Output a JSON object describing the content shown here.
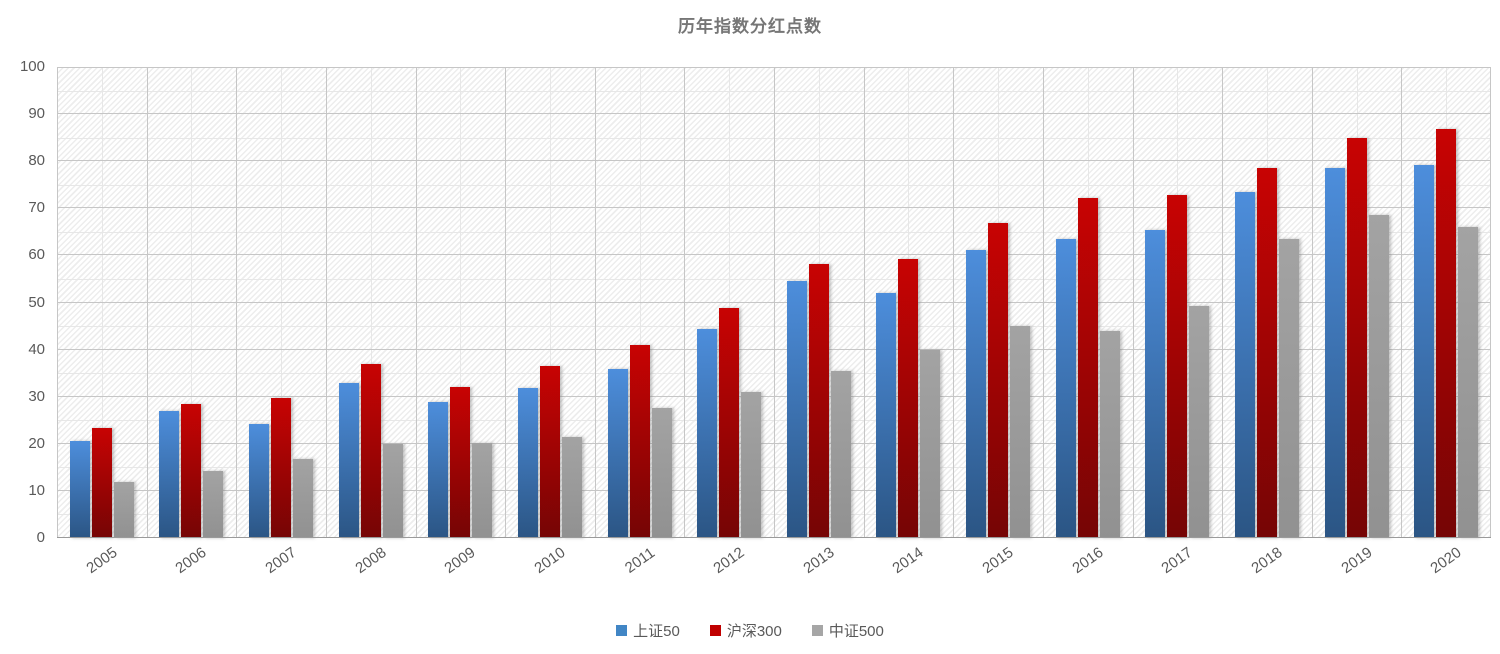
{
  "chart_data": {
    "type": "bar",
    "title": "历年指数分红点数",
    "categories": [
      "2005",
      "2006",
      "2007",
      "2008",
      "2009",
      "2010",
      "2011",
      "2012",
      "2013",
      "2014",
      "2015",
      "2016",
      "2017",
      "2018",
      "2019",
      "2020"
    ],
    "series": [
      {
        "name": "上证50",
        "color_top": "#4d8edc",
        "color_bottom": "#2b5584",
        "legend_color": "#4186c5",
        "values": [
          20.6,
          26.9,
          24.3,
          33.0,
          28.8,
          31.8,
          35.8,
          44.4,
          54.5,
          52.0,
          61.1,
          63.4,
          65.4,
          73.5,
          78.6,
          79.2
        ]
      },
      {
        "name": "沪深300",
        "color_top": "#c80303",
        "color_bottom": "#750505",
        "legend_color": "#c00000",
        "values": [
          23.4,
          28.4,
          29.8,
          37.0,
          32.0,
          36.6,
          40.9,
          48.8,
          58.1,
          59.3,
          66.9,
          72.1,
          72.9,
          78.5,
          85.0,
          86.8
        ]
      },
      {
        "name": "中证500",
        "color_top": "#a3a3a3",
        "color_bottom": "#919191",
        "legend_color": "#a6a6a6",
        "values": [
          11.9,
          14.2,
          16.7,
          20.0,
          20.2,
          21.5,
          27.7,
          31.0,
          35.4,
          40.0,
          45.0,
          44.0,
          49.3,
          63.4,
          68.5,
          66.0
        ]
      }
    ],
    "ylim": [
      0,
      100
    ],
    "ytick_step": 10,
    "ytick_minor_step": 5,
    "grid": {
      "major": true,
      "minor": true
    },
    "legend_position": "bottom",
    "plot_background": "diagonal-hatch"
  },
  "colors": {
    "grid_major": "#c6c6c6",
    "grid_minor": "#e7e7e7",
    "axis_line": "#9a9a9a",
    "tick_label": "#595959",
    "title": "#767676"
  }
}
